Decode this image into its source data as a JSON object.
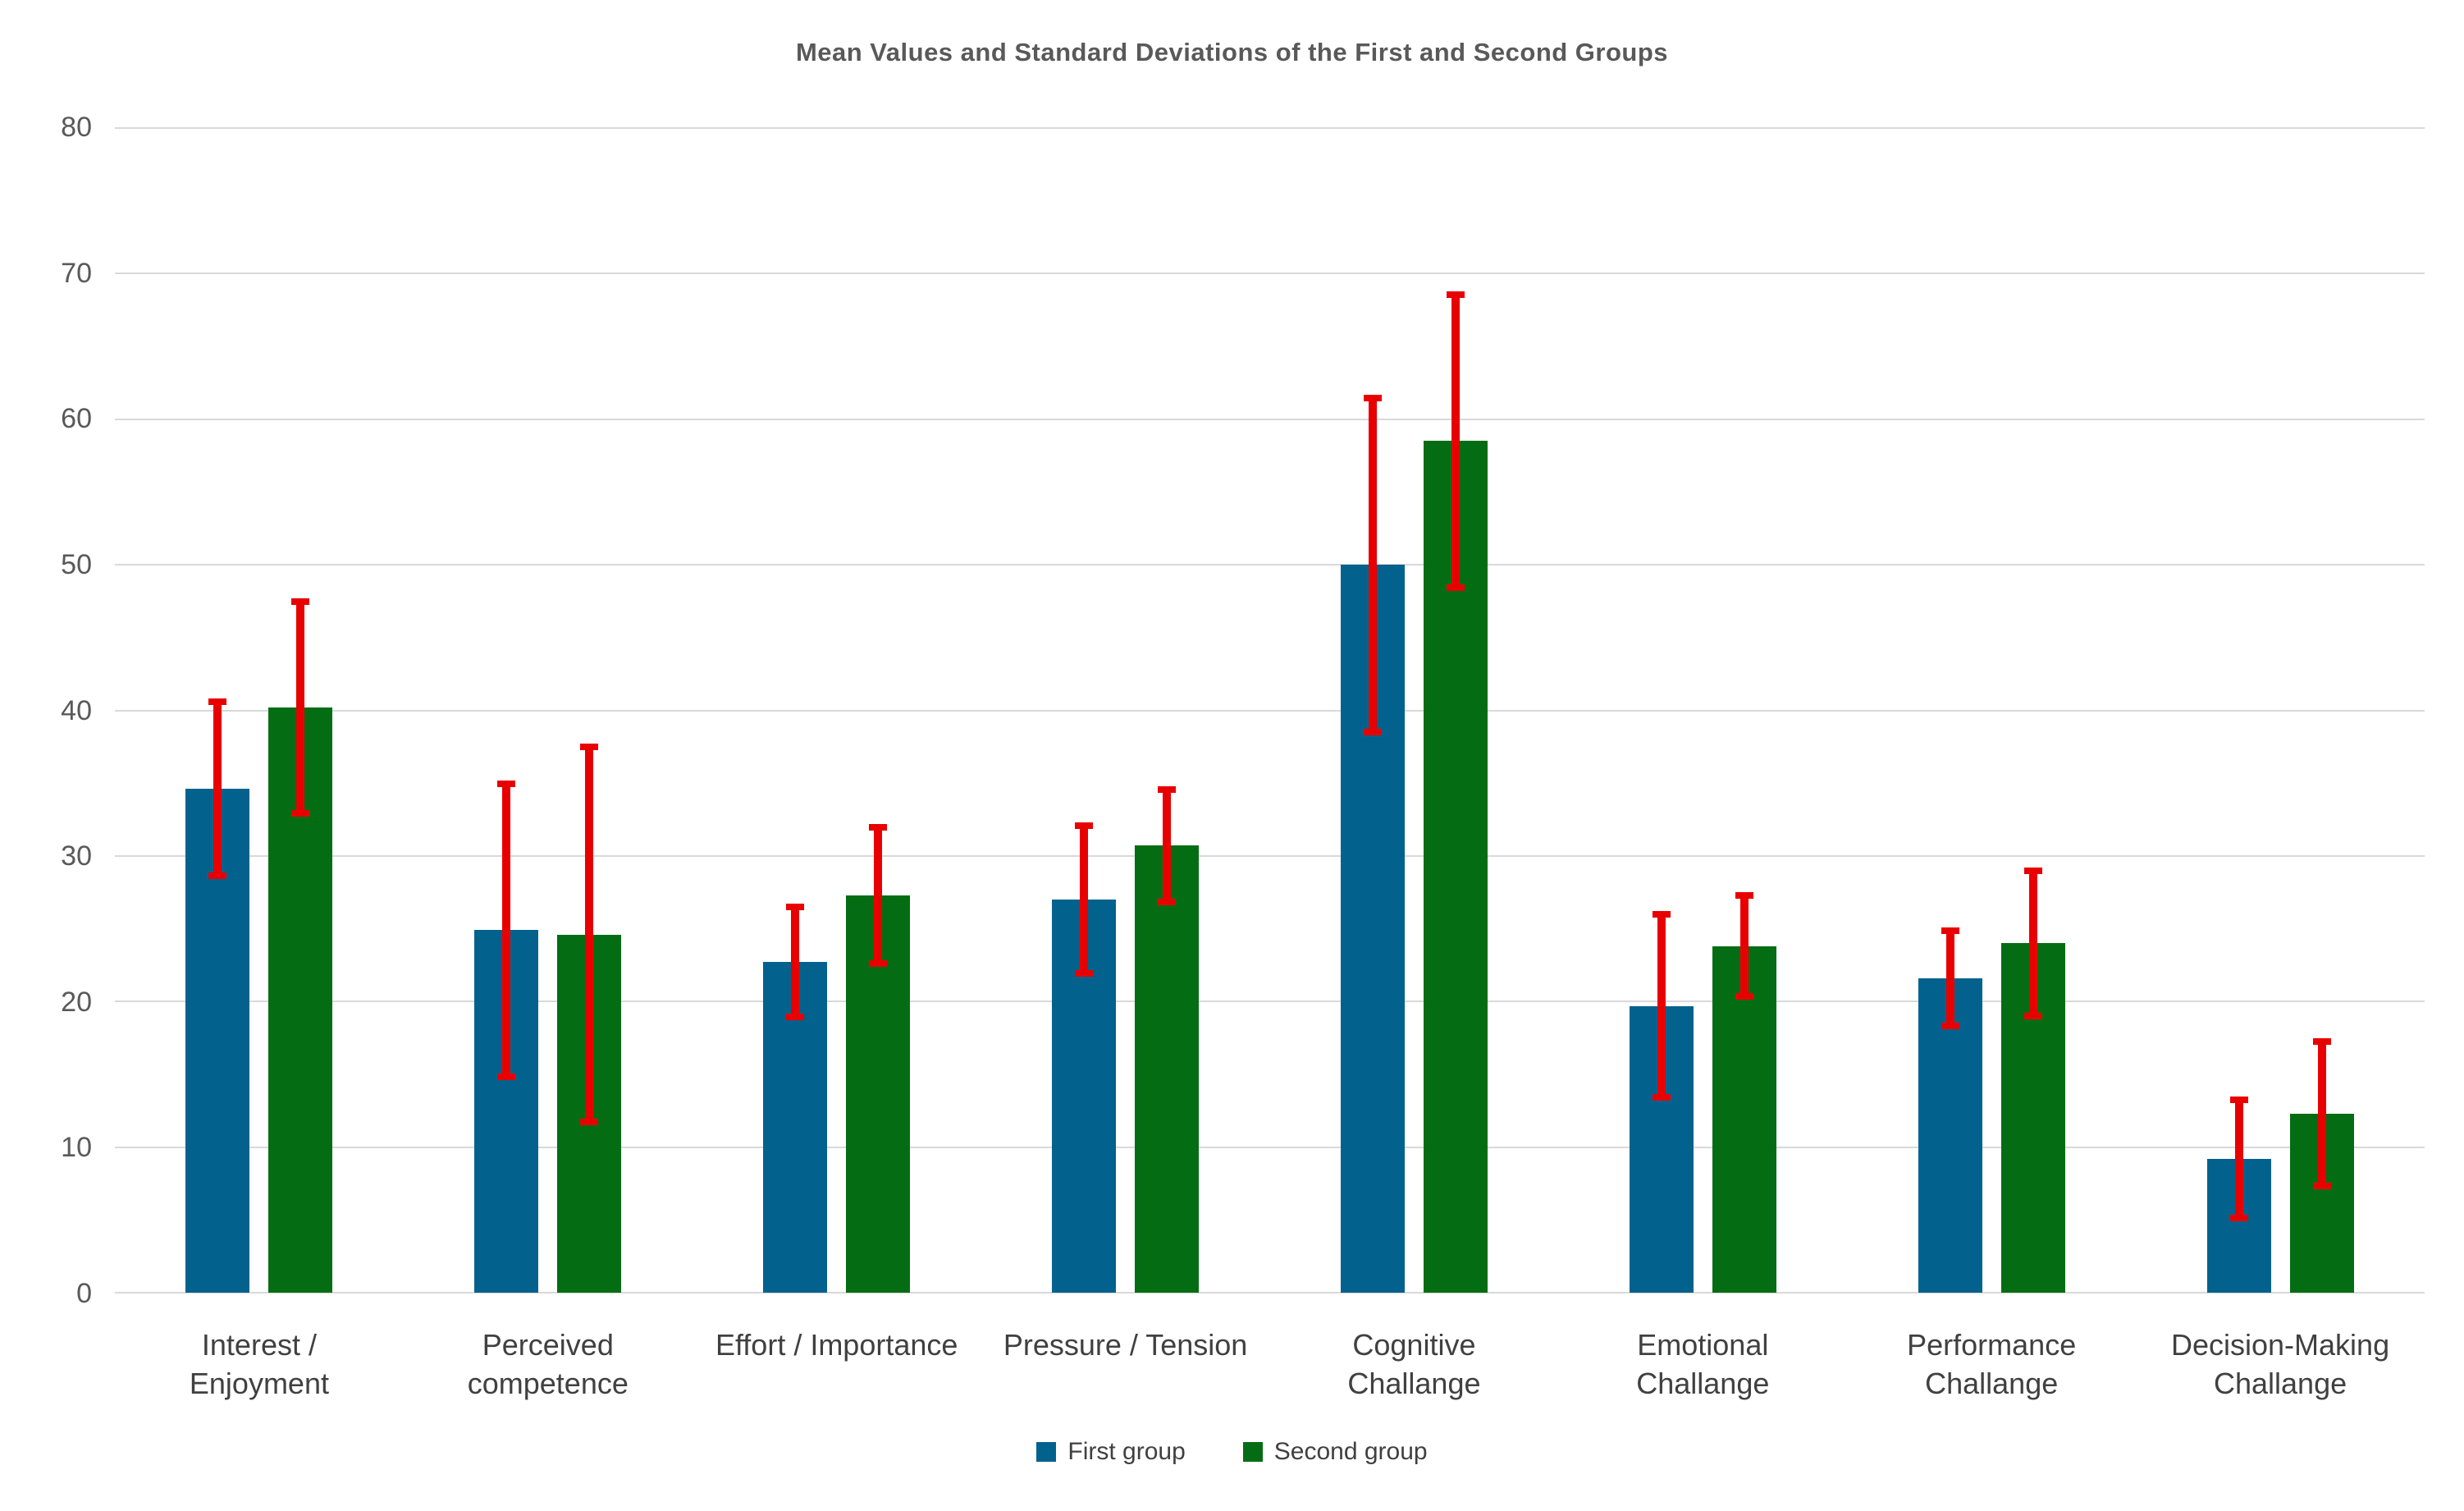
{
  "chart_data": {
    "type": "bar",
    "title": "Mean Values and Standard Deviations of the First and Second Groups",
    "categories": [
      [
        "Interest /",
        "Enjoyment"
      ],
      [
        "Perceived",
        "competence"
      ],
      [
        "Effort / Importance"
      ],
      [
        "Pressure / Tension"
      ],
      [
        "Cognitive",
        "Challange"
      ],
      [
        "Emotional",
        "Challange"
      ],
      [
        "Performance",
        "Challange"
      ],
      [
        "Decision-Making",
        "Challange"
      ]
    ],
    "series": [
      {
        "name": "First group",
        "color": "#02628d",
        "values": [
          34.6,
          24.9,
          22.7,
          27.0,
          50.0,
          19.7,
          21.6,
          9.2
        ],
        "std_dev": [
          6.2,
          10.3,
          4.0,
          5.3,
          11.7,
          6.5,
          3.5,
          4.3
        ]
      },
      {
        "name": "Second group",
        "color": "#046d13",
        "values": [
          40.2,
          24.6,
          27.3,
          30.7,
          58.5,
          23.8,
          24.0,
          12.3
        ],
        "std_dev": [
          7.5,
          13.1,
          4.9,
          4.1,
          10.3,
          3.7,
          5.2,
          5.2
        ]
      }
    ],
    "error_bar_color": "#e80000",
    "y_axis": {
      "min": 0,
      "max": 80,
      "step": 10,
      "ticks": [
        "0",
        "10",
        "20",
        "30",
        "40",
        "50",
        "60",
        "70",
        "80"
      ]
    },
    "grid": true,
    "gridline_color": "#d9d9d9",
    "legend_position": "bottom"
  }
}
